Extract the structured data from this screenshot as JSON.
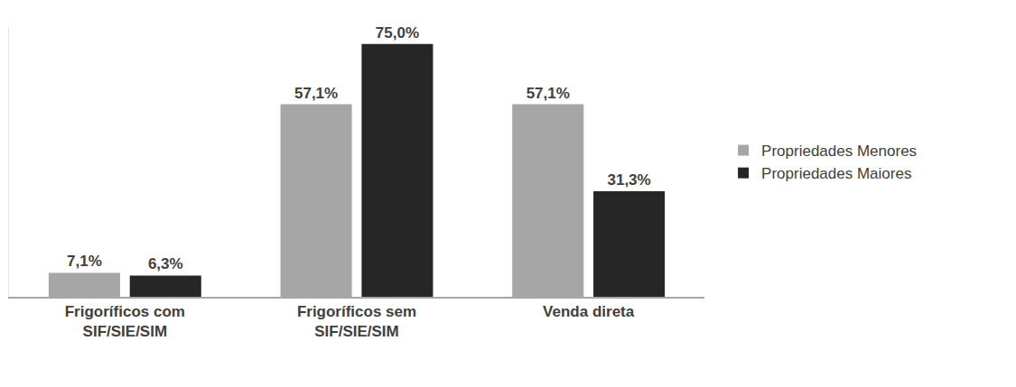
{
  "chart_data": {
    "type": "bar",
    "categories": [
      "Frigoríficos com\nSIF/SIE/SIM",
      "Frigoríficos sem\nSIF/SIE/SIM",
      "Venda direta"
    ],
    "series": [
      {
        "name": "Propriedades Menores",
        "color": "#a6a6a6",
        "values": [
          7.1,
          57.1,
          57.1
        ],
        "value_labels": [
          "7,1%",
          "57,1%",
          "57,1%"
        ]
      },
      {
        "name": "Propriedades Maiores",
        "color": "#262626",
        "values": [
          6.3,
          75.0,
          31.3
        ],
        "value_labels": [
          "6,3%",
          "75,0%",
          "31,3%"
        ]
      }
    ],
    "ylim": [
      0,
      80
    ],
    "data_labels": true,
    "tick_labels": "x",
    "grid": false,
    "legend": "right"
  }
}
